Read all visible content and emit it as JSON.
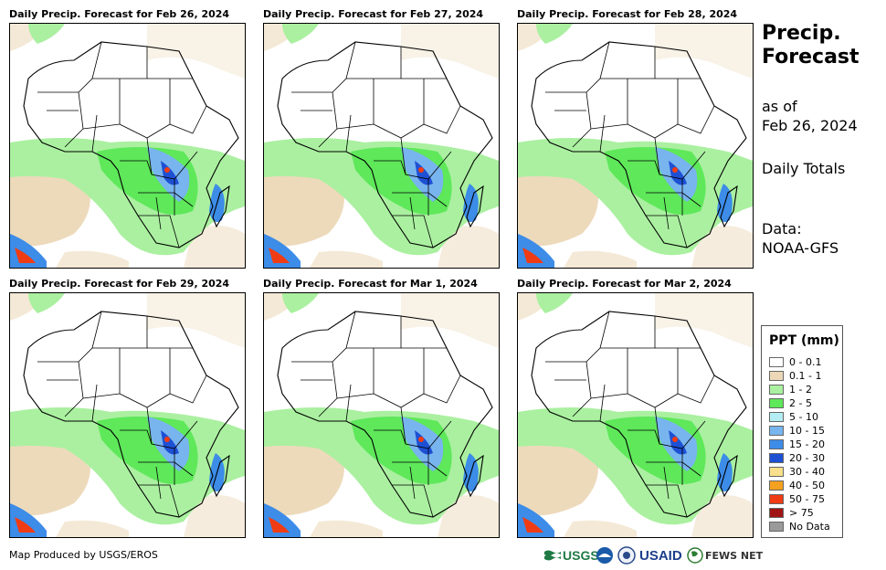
{
  "panels": [
    {
      "title": "Daily Precip. Forecast for Feb 26, 2024"
    },
    {
      "title": "Daily Precip. Forecast for Feb 27, 2024"
    },
    {
      "title": "Daily Precip. Forecast for Feb 28, 2024"
    },
    {
      "title": "Daily Precip. Forecast for Feb 29, 2024"
    },
    {
      "title": "Daily Precip. Forecast for Mar 1, 2024"
    },
    {
      "title": "Daily Precip. Forecast for Mar 2, 2024"
    }
  ],
  "side": {
    "title_line1": "Precip.",
    "title_line2": "Forecast",
    "asof_line1": "as of",
    "asof_line2": "Feb 26, 2024",
    "totals": "Daily Totals",
    "data_line1": "Data:",
    "data_line2": "NOAA-GFS"
  },
  "legend": {
    "title": "PPT (mm)",
    "items": [
      {
        "label": "0 - 0.1",
        "color": "#ffffff"
      },
      {
        "label": "0.1 - 1",
        "color": "#ecd8b8"
      },
      {
        "label": "1 - 2",
        "color": "#aaf0a0"
      },
      {
        "label": "2 - 5",
        "color": "#5ee85a"
      },
      {
        "label": "5 - 10",
        "color": "#b4eef4"
      },
      {
        "label": "10 - 15",
        "color": "#78b4ee"
      },
      {
        "label": "15 - 20",
        "color": "#3c8ce8"
      },
      {
        "label": "20 - 30",
        "color": "#1e50d4"
      },
      {
        "label": "30 - 40",
        "color": "#f8e08c"
      },
      {
        "label": "40 - 50",
        "color": "#f4a020"
      },
      {
        "label": "50 - 75",
        "color": "#f03c14"
      },
      {
        "label": "> 75",
        "color": "#a01414"
      },
      {
        "label": "No Data",
        "color": "#9a9a9a"
      }
    ]
  },
  "footer": {
    "credit": "Map Produced by USGS/EROS",
    "usgs": "USGS",
    "usaid": "USAID",
    "fews": "FEWS NET"
  }
}
